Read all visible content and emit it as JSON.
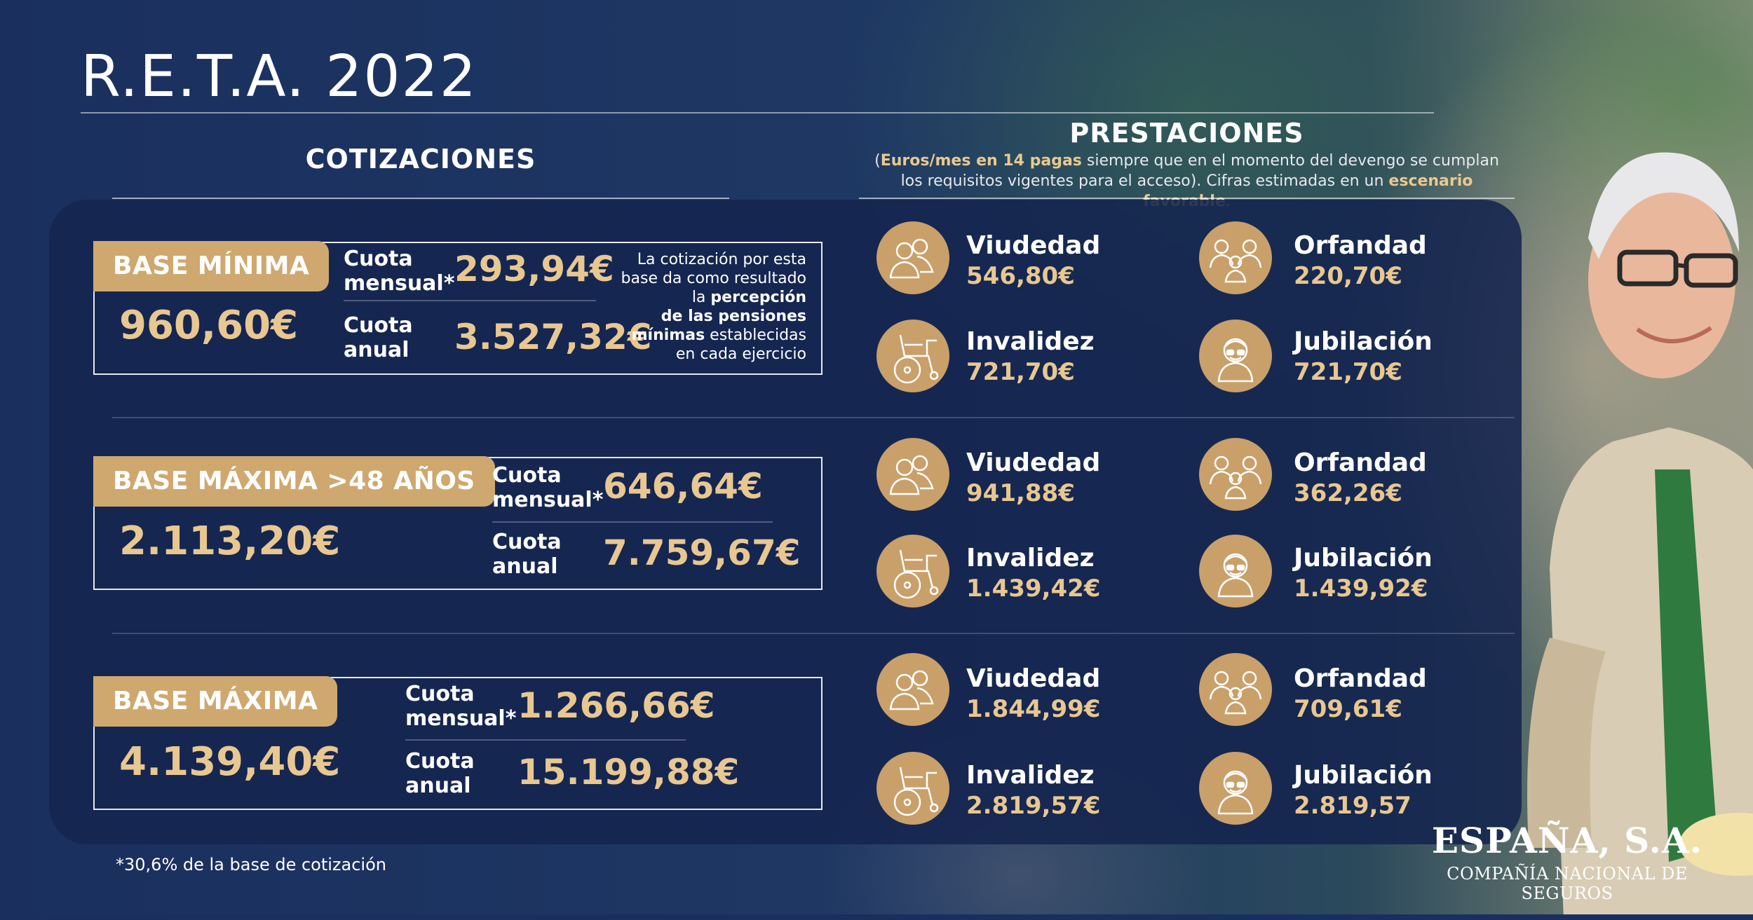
{
  "title": "R.E.T.A. 2022",
  "cotizaciones": {
    "heading": "COTIZACIONES",
    "footnote": "*30,6% de la base de cotización",
    "cuota_mensual_label": [
      "Cuota",
      "mensual*"
    ],
    "cuota_anual_label": [
      "Cuota",
      "anual"
    ],
    "bases": [
      {
        "tag": "BASE MÍNIMA",
        "value": "960,60€",
        "cuota_mensual": "293,94€",
        "cuota_anual": "3.527,32€",
        "note": {
          "line1": "La cotización por esta",
          "line2": "base da como resultado",
          "line3_pre": "la ",
          "line3_bold": "percepción",
          "line4_bold": "de las pensiones",
          "line5_bold": "mínimas",
          "line5_rest": " establecidas",
          "line6": "en cada ejercicio"
        }
      },
      {
        "tag": "BASE MÁXIMA >48 AÑOS",
        "value": "2.113,20€",
        "cuota_mensual": "646,64€",
        "cuota_anual": "7.759,67€"
      },
      {
        "tag": "BASE MÁXIMA",
        "value": "4.139,40€",
        "cuota_mensual": "1.266,66€",
        "cuota_anual": "15.199,88€"
      }
    ]
  },
  "prestaciones": {
    "heading": "PRESTACIONES",
    "note": {
      "p1": "(",
      "b1": "Euros/mes en 14 pagas",
      "p2": " siempre que en el momento del devengo se cumplan",
      "p3": "los requisitos vigentes para el acceso). Cifras estimadas en un ",
      "b2": "escenario favorable",
      "p4": "."
    },
    "groups": [
      {
        "viudedad": {
          "label": "Viudedad",
          "value": "546,80€"
        },
        "orfandad": {
          "label": "Orfandad",
          "value": "220,70€"
        },
        "invalidez": {
          "label": "Invalidez",
          "value": "721,70€"
        },
        "jubilacion": {
          "label": "Jubilación",
          "value": "721,70€"
        }
      },
      {
        "viudedad": {
          "label": "Viudedad",
          "value": "941,88€"
        },
        "orfandad": {
          "label": "Orfandad",
          "value": "362,26€"
        },
        "invalidez": {
          "label": "Invalidez",
          "value": "1.439,42€"
        },
        "jubilacion": {
          "label": "Jubilación",
          "value": "1.439,92€"
        }
      },
      {
        "viudedad": {
          "label": "Viudedad",
          "value": "1.844,99€"
        },
        "orfandad": {
          "label": "Orfandad",
          "value": "709,61€"
        },
        "invalidez": {
          "label": "Invalidez",
          "value": "2.819,57€"
        },
        "jubilacion": {
          "label": "Jubilación",
          "value": "2.819,57"
        }
      }
    ]
  },
  "brand": {
    "name": "ESPAÑA, S.A.",
    "subtitle": "COMPAÑÍA NACIONAL DE SEGUROS"
  },
  "colors": {
    "navy": "#1e3560",
    "gold": "#cfa86f",
    "gold_text": "#e8c791"
  }
}
